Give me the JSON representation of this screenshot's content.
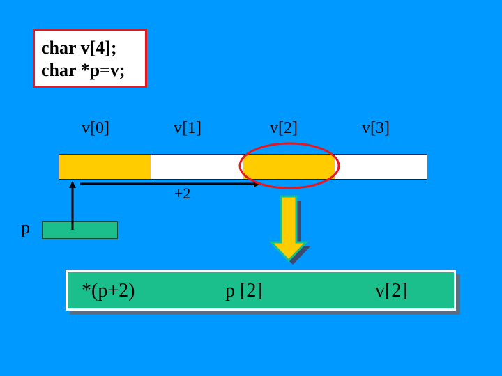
{
  "code": {
    "line1": "char v[4];",
    "line2": "char *p=v;"
  },
  "array": {
    "labels": [
      "v[0]",
      "v[1]",
      "v[2]",
      "v[3]"
    ],
    "cell_colors": [
      "#ffcc00",
      "#ffffff",
      "#ffcc00",
      "#ffffff"
    ]
  },
  "pointer": {
    "label": "p",
    "offset_label": "+2"
  },
  "result": {
    "expr1": "*(p+2)",
    "expr2": "p [2]",
    "expr3": "v[2]"
  },
  "colors": {
    "background": "#0099ff",
    "highlight_circle": "#e8161d",
    "pointer_box": "#1abf8c",
    "down_arrow": "#ffcc00"
  }
}
